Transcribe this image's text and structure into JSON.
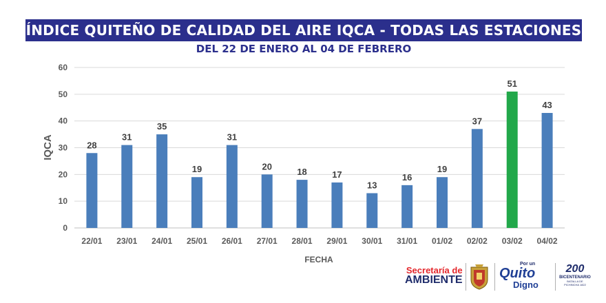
{
  "header": {
    "title": "ÍNDICE QUITEÑO DE CALIDAD DEL AIRE IQCA - TODAS LAS ESTACIONES",
    "subtitle": "DEL 22 DE ENERO AL 04 DE FEBRERO"
  },
  "chart_data": {
    "type": "bar",
    "title": "ÍNDICE QUITEÑO DE CALIDAD DEL AIRE IQCA - TODAS LAS ESTACIONES",
    "subtitle": "DEL 22 DE ENERO AL 04 DE FEBRERO",
    "xlabel": "FECHA",
    "ylabel": "IQCA",
    "ylim": [
      0,
      60
    ],
    "yticks": [
      0,
      10,
      20,
      30,
      40,
      50,
      60
    ],
    "grid": true,
    "categories": [
      "22/01",
      "23/01",
      "24/01",
      "25/01",
      "26/01",
      "27/01",
      "28/01",
      "29/01",
      "30/01",
      "31/01",
      "01/02",
      "02/02",
      "03/02",
      "04/02"
    ],
    "values": [
      28,
      31,
      35,
      19,
      31,
      20,
      18,
      17,
      13,
      16,
      19,
      37,
      51,
      43
    ],
    "data_labels": [
      "28",
      "31",
      "35",
      "19",
      "31",
      "20",
      "18",
      "17",
      "13",
      "16",
      "19",
      "37",
      "51",
      "43"
    ],
    "colors": {
      "bar": "#4a7ebb",
      "highlight_bar": "#22a84a",
      "grid": "#d9d9d9"
    },
    "highlight_index": 12
  },
  "logos": {
    "secretaria_line1": "Secretaría de",
    "secretaria_line2": "AMBIENTE",
    "quito_tagline": "Por un",
    "quito_name": "Quito",
    "quito_sub": "Digno",
    "bicentenario_mark": "200",
    "bicentenario_text": "BICENTENARIO",
    "bicentenario_sub": "BATALLA DE PICHINCHA 1822"
  }
}
